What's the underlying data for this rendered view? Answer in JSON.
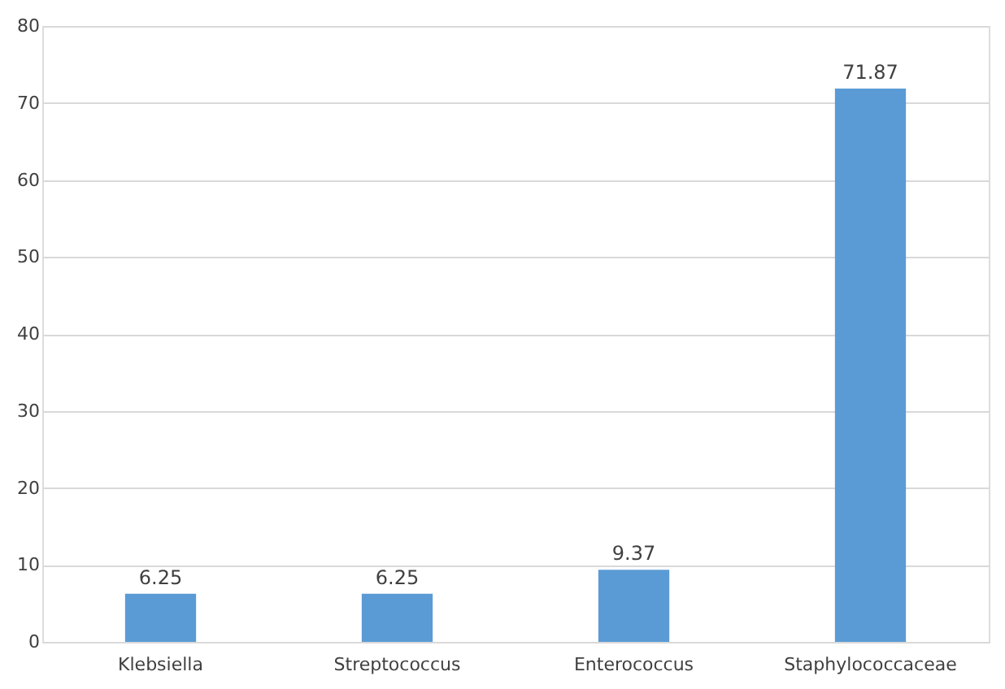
{
  "chart_data": {
    "type": "bar",
    "categories": [
      "Klebsiella",
      "Streptococcus",
      "Enterococcus",
      "Staphylococcaceae"
    ],
    "values": [
      6.25,
      6.25,
      9.37,
      71.87
    ],
    "color": "#5b9bd5",
    "ylim": [
      0,
      80
    ],
    "yticks": [
      0,
      10,
      20,
      30,
      40,
      50,
      60,
      70,
      80
    ],
    "grid": "y",
    "data_labels": true
  }
}
